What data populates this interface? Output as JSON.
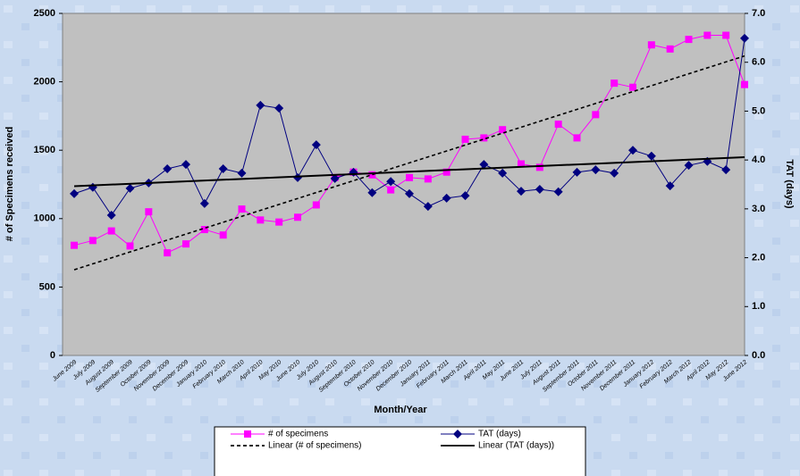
{
  "chart_data": {
    "type": "line",
    "x_label": "Month/Year",
    "y_label": "# of Specimens received",
    "y2_label": "TAT (days)",
    "categories": [
      "June 2009",
      "July 2009",
      "August 2009",
      "September 2009",
      "October 2009",
      "November 2009",
      "December 2009",
      "January 2010",
      "February 2010",
      "March 2010",
      "April 2010",
      "May 2010",
      "June 2010",
      "July 2010",
      "August 2010",
      "September 2010",
      "October 2010",
      "November 2010",
      "December 2010",
      "January 2011",
      "February 2011",
      "March 2011",
      "April 2011",
      "May 2011",
      "June 2011",
      "July 2011",
      "August 2011",
      "September 2011",
      "October 2011",
      "November 2011",
      "December 2011",
      "January 2012",
      "February 2012",
      "March 2012",
      "April 2012",
      "May 2012",
      "June 2012"
    ],
    "series": [
      {
        "name": "# of specimens",
        "color": "#ff00ff",
        "marker": "square",
        "axis": "y",
        "values": [
          805,
          840,
          910,
          800,
          1050,
          750,
          815,
          920,
          880,
          1070,
          990,
          975,
          1010,
          1100,
          1300,
          1340,
          1320,
          1210,
          1300,
          1290,
          1340,
          1580,
          1590,
          1650,
          1400,
          1375,
          1690,
          1590,
          1760,
          1990,
          1960,
          2270,
          2240,
          2310,
          2340,
          2340,
          1980
        ]
      },
      {
        "name": "TAT (days)",
        "color": "#000080",
        "marker": "diamond",
        "axis": "y2",
        "values": [
          3.31,
          3.44,
          2.87,
          3.42,
          3.53,
          3.82,
          3.91,
          3.11,
          3.82,
          3.73,
          5.12,
          5.06,
          3.64,
          4.31,
          3.62,
          3.75,
          3.33,
          3.56,
          3.31,
          3.05,
          3.22,
          3.27,
          3.91,
          3.73,
          3.36,
          3.4,
          3.35,
          3.75,
          3.8,
          3.73,
          4.2,
          4.08,
          3.47,
          3.89,
          3.97,
          3.8,
          6.49
        ]
      },
      {
        "name": "Linear (# of specimens)",
        "color": "#000000",
        "trend_of": 0,
        "dashed": true
      },
      {
        "name": "Linear (TAT (days))",
        "color": "#000000",
        "trend_of": 1,
        "dashed": false
      }
    ],
    "ylim": [
      0,
      2500
    ],
    "yticks": [
      0,
      500,
      1000,
      1500,
      2000,
      2500
    ],
    "y2lim": [
      0,
      7
    ],
    "y2ticks": [
      {
        "value": 0,
        "label": "0.0"
      },
      {
        "value": 1,
        "label": "1.0"
      },
      {
        "value": 2,
        "label": "2.0"
      },
      {
        "value": 3,
        "label": "3.0"
      },
      {
        "value": 4,
        "label": "4.0"
      },
      {
        "value": 5,
        "label": "5.0"
      },
      {
        "value": 6,
        "label": "6.0"
      },
      {
        "value": 7,
        "label": "7.0"
      }
    ],
    "legend": "bottom"
  }
}
